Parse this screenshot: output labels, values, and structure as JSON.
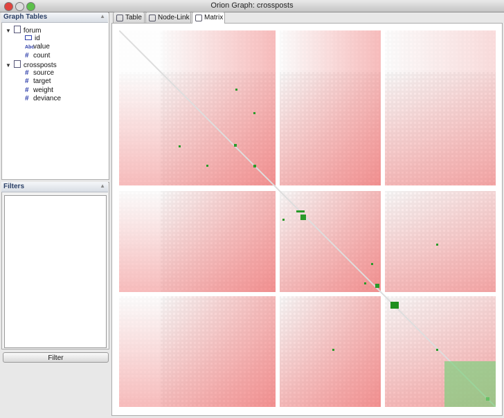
{
  "window": {
    "title": "Orion Graph: crossposts"
  },
  "sidebar": {
    "graph_tables": {
      "title": "Graph Tables",
      "tables": [
        {
          "name": "forum",
          "columns": [
            {
              "name": "id"
            },
            {
              "icon": "Abc",
              "name": "value"
            },
            {
              "icon": "#",
              "name": "count"
            }
          ]
        },
        {
          "name": "crossposts",
          "columns": [
            {
              "icon": "#",
              "name": "source"
            },
            {
              "icon": "#",
              "name": "target"
            },
            {
              "icon": "#",
              "name": "weight"
            },
            {
              "icon": "#",
              "name": "deviance"
            }
          ]
        }
      ]
    },
    "filters": {
      "title": "Filters",
      "button": "Filter"
    }
  },
  "tabs": [
    "Table",
    "Node-Link",
    "Matrix"
  ]
}
